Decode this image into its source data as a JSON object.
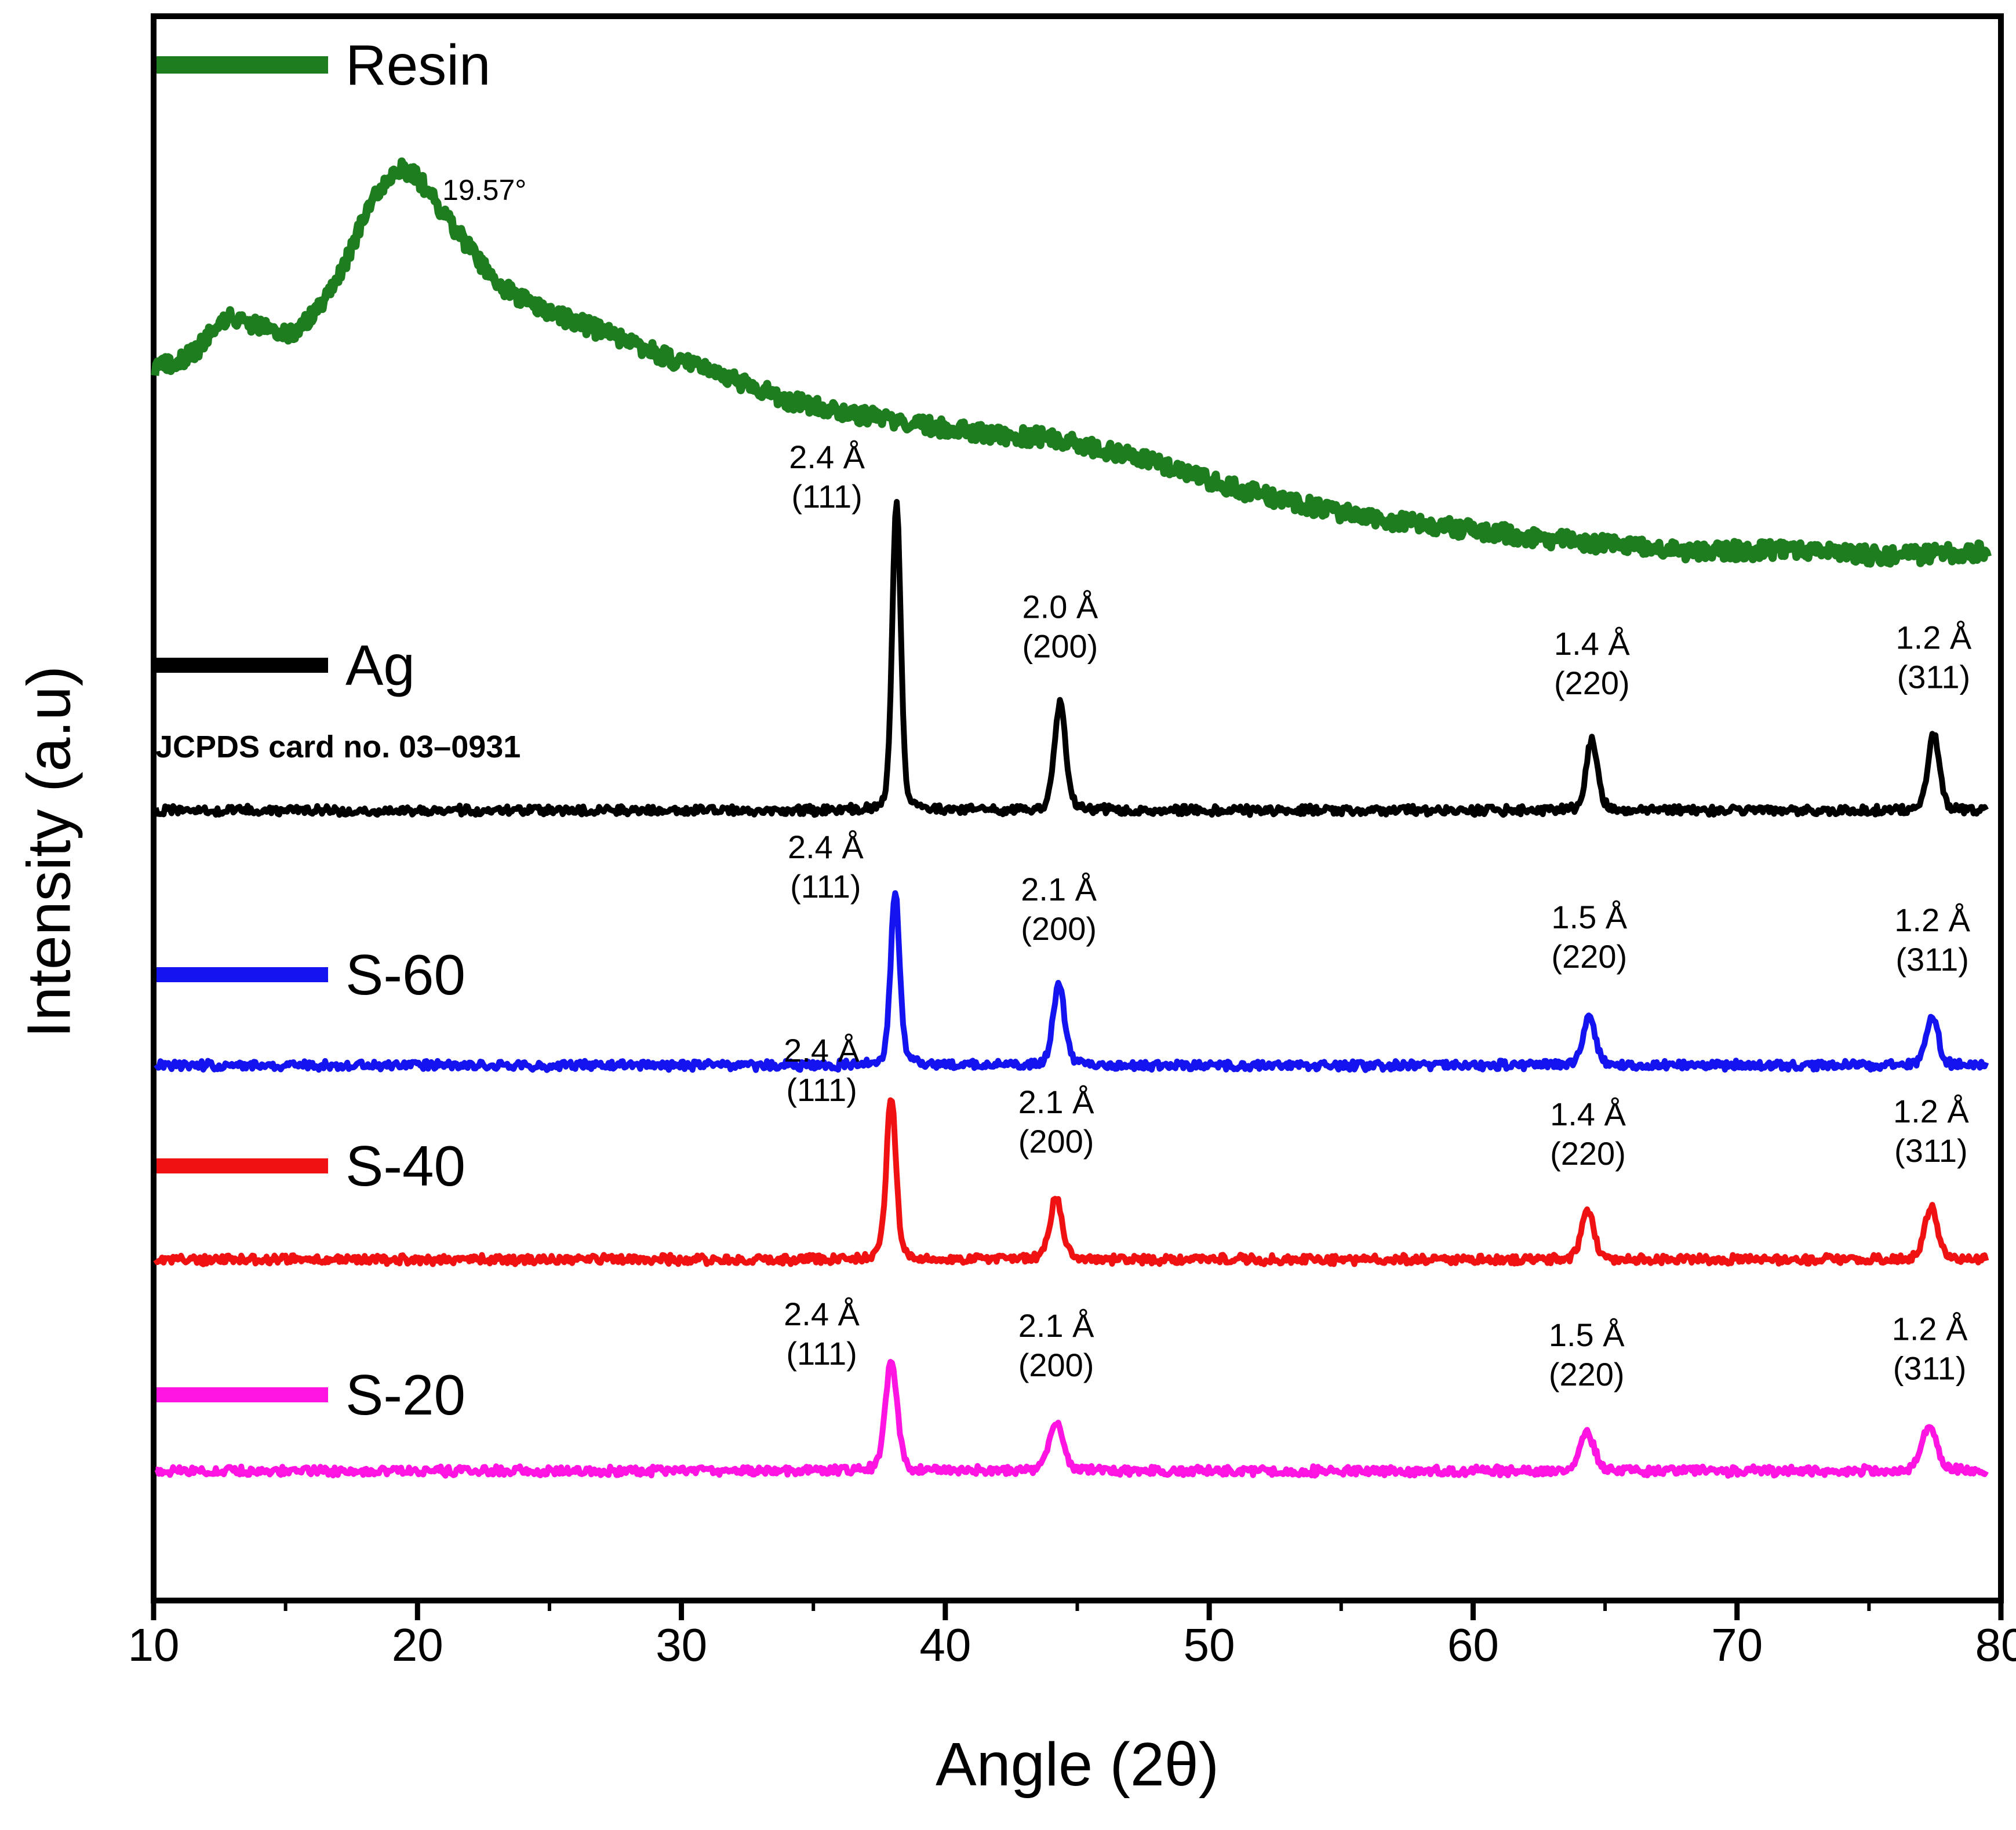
{
  "chart_data": {
    "type": "line",
    "title": "",
    "xlabel": "Angle (2θ)",
    "ylabel": "Intensity (a.u)",
    "x_range": [
      10,
      80
    ],
    "x_ticks": [
      10,
      20,
      30,
      40,
      50,
      60,
      70,
      80
    ],
    "y_axis": "arbitrary units, no tick labels",
    "grid": false,
    "legend_position": "inline-left, one entry beside each stacked trace",
    "annotation_color": "#000000",
    "series": [
      {
        "name": "Resin",
        "color": "#1e7d1e",
        "style": "broad amorphous hump",
        "annotation": {
          "text": "19.57°",
          "two_theta": 19.57
        },
        "profile": [
          [
            10,
            0.493
          ],
          [
            11.5,
            0.536
          ],
          [
            12.8,
            0.63
          ],
          [
            14,
            0.601
          ],
          [
            15.3,
            0.587
          ],
          [
            16.5,
            0.667
          ],
          [
            17.5,
            0.797
          ],
          [
            18.3,
            0.928
          ],
          [
            19.0,
            0.986
          ],
          [
            19.5,
            1.0
          ],
          [
            20.0,
            0.978
          ],
          [
            20.8,
            0.906
          ],
          [
            21.8,
            0.812
          ],
          [
            23,
            0.71
          ],
          [
            24.5,
            0.652
          ],
          [
            26,
            0.616
          ],
          [
            28,
            0.565
          ],
          [
            30,
            0.514
          ],
          [
            32,
            0.471
          ],
          [
            34,
            0.42
          ],
          [
            36,
            0.391
          ],
          [
            38,
            0.37
          ],
          [
            40,
            0.348
          ],
          [
            42,
            0.333
          ],
          [
            44,
            0.326
          ],
          [
            46,
            0.297
          ],
          [
            48,
            0.261
          ],
          [
            50,
            0.217
          ],
          [
            52,
            0.181
          ],
          [
            54,
            0.152
          ],
          [
            56,
            0.123
          ],
          [
            58,
            0.109
          ],
          [
            60,
            0.094
          ],
          [
            62,
            0.08
          ],
          [
            64,
            0.065
          ],
          [
            66,
            0.051
          ],
          [
            68,
            0.043
          ],
          [
            70,
            0.043
          ],
          [
            72,
            0.043
          ],
          [
            74,
            0.036
          ],
          [
            76,
            0.029
          ],
          [
            78,
            0.036
          ],
          [
            80,
            0.043
          ]
        ]
      },
      {
        "name": "Ag",
        "color": "#000000",
        "note": "JCPDS card no. 03–0931",
        "peaks": [
          {
            "two_theta": 38.15,
            "d_spacing": "2.4 Å",
            "hkl": "(111)",
            "rel_intensity": 100
          },
          {
            "two_theta": 44.35,
            "d_spacing": "2.0 Å",
            "hkl": "(200)",
            "rel_intensity": 35
          },
          {
            "two_theta": 64.5,
            "d_spacing": "1.4 Å",
            "hkl": "(220)",
            "rel_intensity": 23
          },
          {
            "two_theta": 77.45,
            "d_spacing": "1.2 Å",
            "hkl": "(311)",
            "rel_intensity": 25
          }
        ]
      },
      {
        "name": "S-60",
        "color": "#1414f0",
        "peaks": [
          {
            "two_theta": 38.1,
            "d_spacing": "2.4 Å",
            "hkl": "(111)",
            "rel_intensity": 56
          },
          {
            "two_theta": 44.3,
            "d_spacing": "2.1 Å",
            "hkl": "(200)",
            "rel_intensity": 26
          },
          {
            "two_theta": 64.4,
            "d_spacing": "1.5 Å",
            "hkl": "(220)",
            "rel_intensity": 17
          },
          {
            "two_theta": 77.4,
            "d_spacing": "1.2 Å",
            "hkl": "(311)",
            "rel_intensity": 16
          }
        ]
      },
      {
        "name": "S-40",
        "color": "#f01212",
        "peaks": [
          {
            "two_theta": 37.95,
            "d_spacing": "2.4 Å",
            "hkl": "(111)",
            "rel_intensity": 53
          },
          {
            "two_theta": 44.2,
            "d_spacing": "2.1 Å",
            "hkl": "(200)",
            "rel_intensity": 20
          },
          {
            "two_theta": 64.35,
            "d_spacing": "1.4 Å",
            "hkl": "(220)",
            "rel_intensity": 16
          },
          {
            "two_theta": 77.35,
            "d_spacing": "1.2 Å",
            "hkl": "(311)",
            "rel_intensity": 17
          }
        ]
      },
      {
        "name": "S-20",
        "color": "#ff14e1",
        "peaks": [
          {
            "two_theta": 37.95,
            "d_spacing": "2.4 Å",
            "hkl": "(111)",
            "rel_intensity": 36
          },
          {
            "two_theta": 44.2,
            "d_spacing": "2.1 Å",
            "hkl": "(200)",
            "rel_intensity": 16
          },
          {
            "two_theta": 64.3,
            "d_spacing": "1.5 Å",
            "hkl": "(220)",
            "rel_intensity": 13
          },
          {
            "two_theta": 77.3,
            "d_spacing": "1.2 Å",
            "hkl": "(311)",
            "rel_intensity": 15
          }
        ]
      }
    ]
  }
}
